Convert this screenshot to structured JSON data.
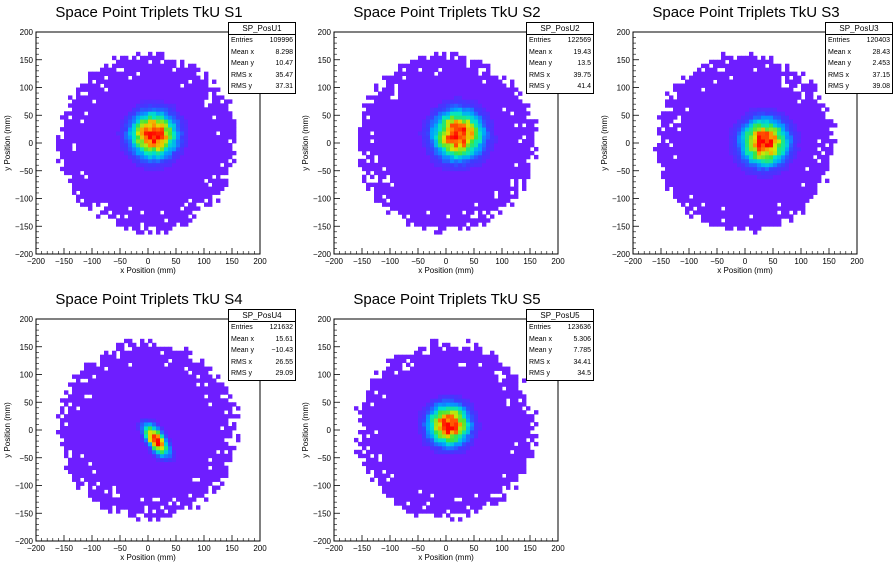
{
  "chart_data": [
    {
      "type": "heatmap",
      "title": "Space Point Triplets TkU S1",
      "hist_name": "SP_PosU1",
      "xlabel": "x Position (mm)",
      "ylabel": "y Position (mm)",
      "xlim": [
        -200,
        200
      ],
      "ylim": [
        -200,
        200
      ],
      "x_ticks": [
        "−200",
        "−150",
        "−100",
        "−50",
        "0",
        "50",
        "100",
        "150",
        "200"
      ],
      "y_ticks": [
        "200",
        "150",
        "100",
        "50",
        "0",
        "−50",
        "−100",
        "−150",
        "−200"
      ],
      "stats": [
        [
          "Entries",
          "109996"
        ],
        [
          "Mean x",
          "8.298"
        ],
        [
          "Mean y",
          "10.47"
        ],
        [
          "RMS x",
          "35.47"
        ],
        [
          "RMS y",
          "37.31"
        ]
      ],
      "center": [
        10,
        15
      ],
      "sigma": [
        28,
        28
      ],
      "angle": 0
    },
    {
      "type": "heatmap",
      "title": "Space Point Triplets TkU S2",
      "hist_name": "SP_PosU2",
      "xlabel": "x Position (mm)",
      "ylabel": "y Position (mm)",
      "xlim": [
        -200,
        200
      ],
      "ylim": [
        -200,
        200
      ],
      "x_ticks": [
        "−200",
        "−150",
        "−100",
        "−50",
        "0",
        "50",
        "100",
        "150",
        "200"
      ],
      "y_ticks": [
        "200",
        "150",
        "100",
        "50",
        "0",
        "−50",
        "−100",
        "−150",
        "−200"
      ],
      "stats": [
        [
          "Entries",
          "122569"
        ],
        [
          "Mean x",
          "19.43"
        ],
        [
          "Mean y",
          "13.5"
        ],
        [
          "RMS x",
          "39.75"
        ],
        [
          "RMS y",
          "41.4"
        ]
      ],
      "center": [
        22,
        15
      ],
      "sigma": [
        30,
        30
      ],
      "angle": 0
    },
    {
      "type": "heatmap",
      "title": "Space Point Triplets TkU S3",
      "hist_name": "SP_PosU3",
      "xlabel": "x Position (mm)",
      "ylabel": "y Position (mm)",
      "xlim": [
        -200,
        200
      ],
      "ylim": [
        -200,
        200
      ],
      "x_ticks": [
        "−200",
        "−150",
        "−100",
        "−50",
        "0",
        "50",
        "100",
        "150",
        "200"
      ],
      "y_ticks": [
        "200",
        "150",
        "100",
        "50",
        "0",
        "−50",
        "−100",
        "−150",
        "−200"
      ],
      "stats": [
        [
          "Entries",
          "120403"
        ],
        [
          "Mean x",
          "28.43"
        ],
        [
          "Mean y",
          "2.453"
        ],
        [
          "RMS x",
          "37.15"
        ],
        [
          "RMS y",
          "39.08"
        ]
      ],
      "center": [
        35,
        2
      ],
      "sigma": [
        28,
        28
      ],
      "angle": 0
    },
    {
      "type": "heatmap",
      "title": "Space Point Triplets TkU S4",
      "hist_name": "SP_PosU4",
      "xlabel": "x Position (mm)",
      "ylabel": "y Position (mm)",
      "xlim": [
        -200,
        200
      ],
      "ylim": [
        -200,
        200
      ],
      "x_ticks": [
        "−200",
        "−150",
        "−100",
        "−50",
        "0",
        "50",
        "100",
        "150",
        "200"
      ],
      "y_ticks": [
        "200",
        "150",
        "100",
        "50",
        "0",
        "−50",
        "−100",
        "−150",
        "−200"
      ],
      "stats": [
        [
          "Entries",
          "121632"
        ],
        [
          "Mean x",
          "15.61"
        ],
        [
          "Mean y",
          "−10.43"
        ],
        [
          "RMS x",
          "26.55"
        ],
        [
          "RMS y",
          "29.09"
        ]
      ],
      "center": [
        15,
        -18
      ],
      "sigma": [
        10,
        22
      ],
      "angle": 35
    },
    {
      "type": "heatmap",
      "title": "Space Point Triplets TkU S5",
      "hist_name": "SP_PosU5",
      "xlabel": "x Position (mm)",
      "ylabel": "y Position (mm)",
      "xlim": [
        -200,
        200
      ],
      "ylim": [
        -200,
        200
      ],
      "x_ticks": [
        "−200",
        "−150",
        "−100",
        "−50",
        "0",
        "50",
        "100",
        "150",
        "200"
      ],
      "y_ticks": [
        "200",
        "150",
        "100",
        "50",
        "0",
        "−50",
        "−100",
        "−150",
        "−200"
      ],
      "stats": [
        [
          "Entries",
          "123636"
        ],
        [
          "Mean x",
          "5.306"
        ],
        [
          "Mean y",
          "7.785"
        ],
        [
          "RMS x",
          "34.41"
        ],
        [
          "RMS y",
          "34.5"
        ]
      ],
      "center": [
        5,
        10
      ],
      "sigma": [
        25,
        25
      ],
      "angle": 0
    }
  ]
}
